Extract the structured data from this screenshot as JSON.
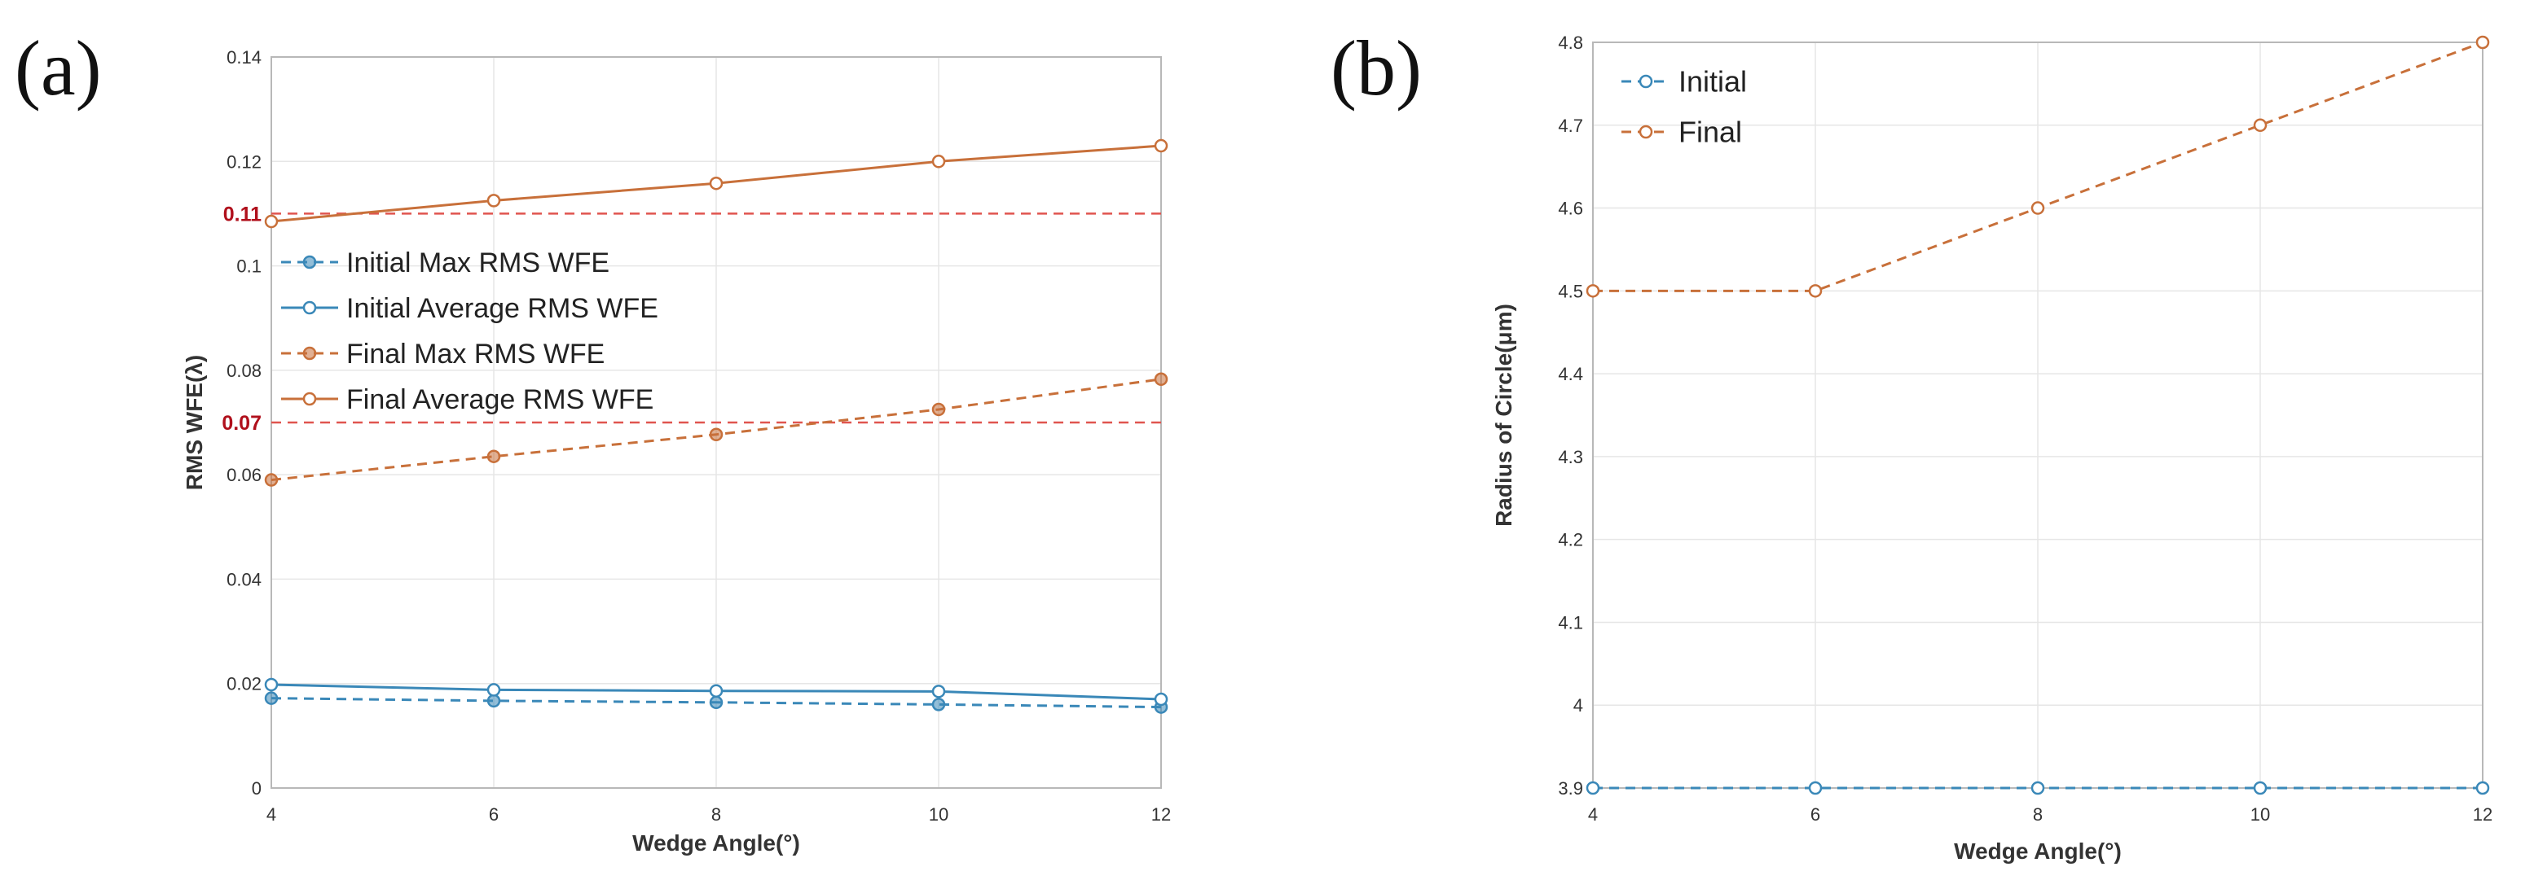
{
  "colors": {
    "blue": "#3a88b8",
    "orange": "#c8703a",
    "ref": "#e0554f",
    "ref_label": "#b0101c",
    "grid": "#e6e6e6",
    "frame": "#b8b8b8"
  },
  "chart_data": [
    {
      "panel_label": "(a)",
      "type": "line",
      "xlabel": "Wedge Angle(°)",
      "ylabel": "RMS WFE(λ)",
      "x": [
        4,
        6,
        8,
        10,
        12
      ],
      "xlim": [
        4,
        12
      ],
      "ylim": [
        0,
        0.14
      ],
      "xticks": [
        "4",
        "6",
        "8",
        "10",
        "12"
      ],
      "yticks": [
        "0",
        "0.02",
        "0.04",
        "0.06",
        "0.08",
        "0.1",
        "0.12",
        "0.14"
      ],
      "series": [
        {
          "name": "Initial Max RMS WFE",
          "color": "#3a88b8",
          "dash": "dashed",
          "marker": "filled",
          "values": [
            0.0172,
            0.0167,
            0.0164,
            0.016,
            0.0155
          ]
        },
        {
          "name": "Initial Average RMS WFE",
          "color": "#3a88b8",
          "dash": "solid",
          "marker": "open",
          "values": [
            0.0198,
            0.0188,
            0.0186,
            0.0185,
            0.017
          ]
        },
        {
          "name": "Final Max RMS WFE",
          "color": "#c8703a",
          "dash": "dashed",
          "marker": "filled",
          "values": [
            0.059,
            0.0635,
            0.0677,
            0.0725,
            0.0783
          ]
        },
        {
          "name": "Final Average RMS WFE",
          "color": "#c8703a",
          "dash": "solid",
          "marker": "open",
          "values": [
            0.1085,
            0.1125,
            0.1158,
            0.12,
            0.123
          ]
        }
      ],
      "reference_lines": [
        {
          "value": 0.11,
          "label": "0.11"
        },
        {
          "value": 0.07,
          "label": "0.07"
        }
      ],
      "legend_position": "center-left"
    },
    {
      "panel_label": "(b)",
      "type": "line",
      "xlabel": "Wedge Angle(°)",
      "ylabel": "Radius of Circle(μm)",
      "x": [
        4,
        6,
        8,
        10,
        12
      ],
      "xlim": [
        4,
        12
      ],
      "ylim": [
        3.9,
        4.8
      ],
      "xticks": [
        "4",
        "6",
        "8",
        "10",
        "12"
      ],
      "yticks": [
        "3.9",
        "4",
        "4.1",
        "4.2",
        "4.3",
        "4.4",
        "4.5",
        "4.6",
        "4.7",
        "4.8"
      ],
      "series": [
        {
          "name": "Initial",
          "color": "#3a88b8",
          "dash": "dashed",
          "marker": "open",
          "values": [
            3.9,
            3.9,
            3.9,
            3.9,
            3.9
          ]
        },
        {
          "name": "Final",
          "color": "#c8703a",
          "dash": "dashed",
          "marker": "open",
          "values": [
            4.5,
            4.5,
            4.6,
            4.7,
            4.8
          ]
        }
      ],
      "reference_lines": [],
      "legend_position": "top-left"
    }
  ]
}
